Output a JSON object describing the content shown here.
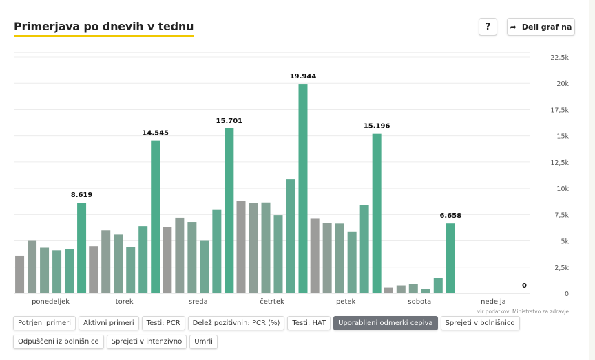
{
  "title": "Primerjava po dnevih v tednu",
  "help_label": "?",
  "share_label": "Deli graf na",
  "icons": {
    "share": "share-arrow-icon"
  },
  "source_note": "vir podatkov: Ministrstvo za zdravje",
  "series_colors": [
    "#9c9c9a",
    "#8e9f97",
    "#7fa394",
    "#70a793",
    "#5faa91",
    "#4dac8c",
    "#32a07a"
  ],
  "chart_data": {
    "type": "bar",
    "title": "Primerjava po dnevih v tednu",
    "categories": [
      "ponedeljek",
      "torek",
      "sreda",
      "četrtek",
      "petek",
      "sobota",
      "nedelja"
    ],
    "ylim": [
      0,
      22500
    ],
    "y_ticks": [
      0,
      2500,
      5000,
      7500,
      10000,
      12500,
      15000,
      17500,
      20000,
      22500
    ],
    "y_tick_labels": [
      "0",
      "2,5k",
      "5k",
      "7,5k",
      "10k",
      "12,5k",
      "15k",
      "17,5k",
      "20k",
      "22,5k"
    ],
    "grid": true,
    "axis_position": "right",
    "values_per_category": [
      [
        3600,
        5000,
        4350,
        4100,
        4250,
        8619
      ],
      [
        4500,
        6000,
        5600,
        4400,
        6400,
        14545
      ],
      [
        6300,
        7200,
        6800,
        5000,
        8000,
        15701
      ],
      [
        8800,
        8600,
        8650,
        7450,
        10850,
        19944
      ],
      [
        7100,
        6700,
        6650,
        5900,
        8400,
        15196
      ],
      [
        550,
        750,
        900,
        450,
        1450,
        6658
      ],
      [
        0,
        0,
        0,
        0,
        0,
        0
      ]
    ],
    "value_labels": [
      "8.619",
      "14.545",
      "15.701",
      "19.944",
      "15.196",
      "6.658",
      "0"
    ]
  },
  "filters": [
    {
      "label": "Potrjeni primeri",
      "active": false
    },
    {
      "label": "Aktivni primeri",
      "active": false
    },
    {
      "label": "Testi: PCR",
      "active": false
    },
    {
      "label": "Delež pozitivnih: PCR (%)",
      "active": false
    },
    {
      "label": "Testi: HAT",
      "active": false
    },
    {
      "label": "Uporabljeni odmerki cepiva",
      "active": true
    },
    {
      "label": "Sprejeti v bolnišnico",
      "active": false
    },
    {
      "label": "Odpuščeni iz bolnišnice",
      "active": false
    },
    {
      "label": "Sprejeti v intenzivno",
      "active": false
    },
    {
      "label": "Umrli",
      "active": false
    }
  ]
}
